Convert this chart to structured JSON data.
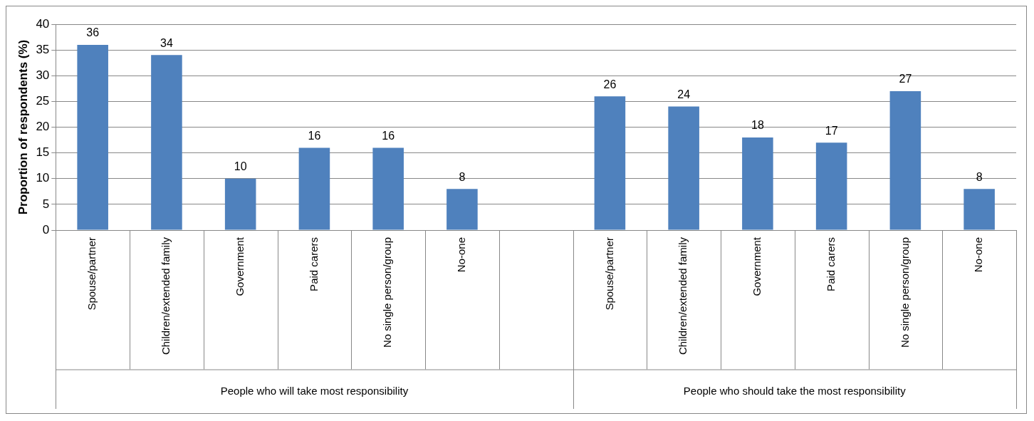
{
  "chart_data": {
    "type": "bar",
    "ylabel": "Proportion of respondents (%)",
    "categories": [
      "Spouse/partner",
      "Children/extended family",
      "Government",
      "Paid carers",
      "No single person/group",
      "No-one",
      null,
      "Spouse/partner",
      "Children/extended family",
      "Government",
      "Paid carers",
      "No single person/group",
      "No-one"
    ],
    "values": [
      36,
      34,
      10,
      16,
      16,
      8,
      null,
      26,
      24,
      18,
      17,
      27,
      8
    ],
    "color": "#4f81bd",
    "ylim": [
      0,
      40
    ],
    "yticks": [
      0,
      5,
      10,
      15,
      20,
      25,
      30,
      35,
      40
    ],
    "grid": "y",
    "data_labels": true,
    "legend": false,
    "annotations": [
      "People who will take most responsibility",
      "People who should take the most responsibility"
    ]
  }
}
